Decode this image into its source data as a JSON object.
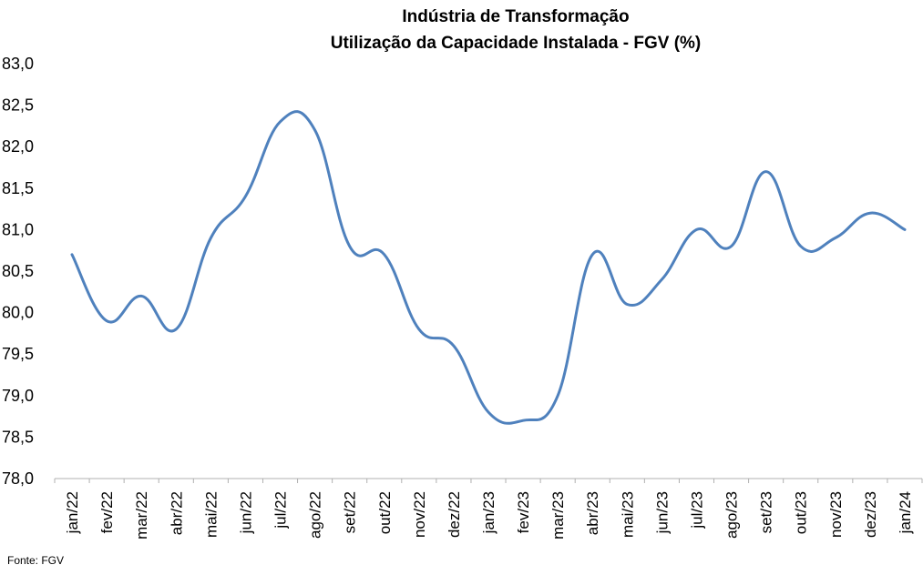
{
  "chart_data": {
    "type": "line",
    "title": "Indústria de Transformação",
    "subtitle": "Utilização da Capacidade Instalada - FGV (%)",
    "source": "Fonte: FGV",
    "categories": [
      "jan/22",
      "fev/22",
      "mar/22",
      "abr/22",
      "mai/22",
      "jun/22",
      "jul/22",
      "ago/22",
      "set/22",
      "out/22",
      "nov/22",
      "dez/22",
      "jan/23",
      "fev/23",
      "mar/23",
      "abr/23",
      "mai/23",
      "jun/23",
      "jul/23",
      "ago/23",
      "set/23",
      "out/23",
      "nov/23",
      "dez/23",
      "jan/24"
    ],
    "series": [
      {
        "name": "",
        "color": "#4f81bd",
        "values": [
          80.7,
          79.9,
          80.2,
          79.8,
          80.9,
          81.4,
          82.3,
          82.2,
          80.8,
          80.7,
          79.8,
          79.6,
          78.8,
          78.7,
          79.0,
          80.7,
          80.1,
          80.4,
          81.0,
          80.8,
          81.7,
          80.8,
          80.9,
          81.2,
          81.0
        ]
      }
    ],
    "ylim": [
      78.0,
      83.0
    ],
    "yticks": [
      "78,0",
      "78,5",
      "79,0",
      "79,5",
      "80,0",
      "80,5",
      "81,0",
      "81,5",
      "82,0",
      "82,5",
      "83,0"
    ],
    "grid": false,
    "legend": "none"
  }
}
